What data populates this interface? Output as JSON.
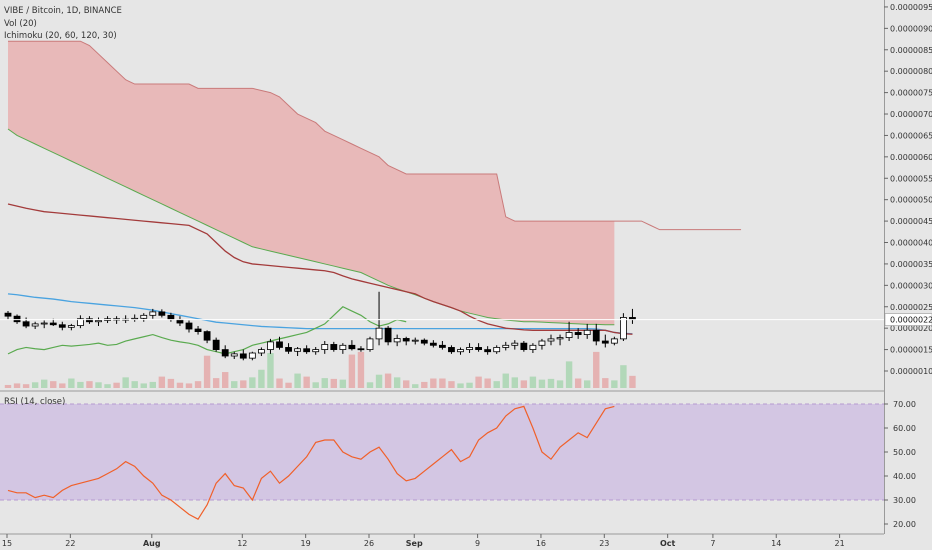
{
  "header": {
    "symbol_line": "VIBE / Bitcoin, 1D, BINANCE",
    "vol_label": "Vol (20)",
    "ichimoku_label": "Ichimoku (20, 60, 120, 30)"
  },
  "rsi": {
    "label": "RSI (14, close)",
    "upper_band": 70,
    "lower_band": 30,
    "y_ticks": [
      "70.00",
      "60.00",
      "50.00",
      "40.00",
      "30.00",
      "20.00"
    ],
    "values": [
      34,
      33,
      33,
      31,
      32,
      31,
      34,
      36,
      37,
      38,
      39,
      41,
      43,
      46,
      44,
      40,
      37,
      32,
      30,
      27,
      24,
      22,
      28,
      37,
      41,
      36,
      35,
      30,
      39,
      42,
      37,
      40,
      44,
      48,
      54,
      55,
      55,
      50,
      48,
      47,
      50,
      52,
      47,
      41,
      38,
      39,
      42,
      45,
      48,
      51,
      46,
      48,
      55,
      58,
      60,
      65,
      68,
      69,
      60,
      50,
      47,
      52,
      55,
      58,
      56,
      62,
      68,
      69
    ],
    "colors": {
      "line": "#f0602a",
      "band_fill": "#d3c6e3",
      "band_border": "#b59bd0"
    }
  },
  "price_axis": {
    "ticks": [
      "0.00000950",
      "0.00000900",
      "0.00000850",
      "0.00000800",
      "0.00000750",
      "0.00000700",
      "0.00000650",
      "0.00000600",
      "0.00000550",
      "0.00000500",
      "0.00000450",
      "0.00000400",
      "0.00000350",
      "0.00000300",
      "0.00000250",
      "0.00000200",
      "0.00000150",
      "0.00000100"
    ],
    "last_price_label": "0.00000220",
    "last_price": 220
  },
  "time_axis": {
    "ticks": [
      "15",
      "22",
      "Aug",
      "12",
      "19",
      "26",
      "Sep",
      "9",
      "16",
      "23",
      "Oct",
      "7",
      "14",
      "21"
    ],
    "bold_ticks": [
      "Aug",
      "Sep",
      "Oct"
    ]
  },
  "chart_data": {
    "type": "candlestick",
    "price_scale_note": "values in satoshi (1e-8 BTC)",
    "ohlc": [
      [
        235,
        240,
        220,
        228
      ],
      [
        228,
        232,
        210,
        215
      ],
      [
        215,
        225,
        200,
        205
      ],
      [
        205,
        215,
        198,
        210
      ],
      [
        210,
        218,
        200,
        212
      ],
      [
        212,
        222,
        205,
        208
      ],
      [
        208,
        215,
        195,
        202
      ],
      [
        202,
        210,
        195,
        206
      ],
      [
        206,
        230,
        200,
        222
      ],
      [
        222,
        228,
        210,
        215
      ],
      [
        215,
        225,
        205,
        218
      ],
      [
        218,
        228,
        212,
        222
      ],
      [
        222,
        228,
        210,
        219
      ],
      [
        219,
        230,
        212,
        221
      ],
      [
        221,
        232,
        215,
        223
      ],
      [
        223,
        235,
        215,
        230
      ],
      [
        230,
        245,
        222,
        238
      ],
      [
        238,
        244,
        225,
        230
      ],
      [
        230,
        236,
        215,
        220
      ],
      [
        220,
        228,
        205,
        212
      ],
      [
        212,
        218,
        190,
        198
      ],
      [
        198,
        205,
        185,
        192
      ],
      [
        192,
        195,
        165,
        172
      ],
      [
        172,
        178,
        145,
        150
      ],
      [
        150,
        160,
        130,
        135
      ],
      [
        135,
        145,
        128,
        140
      ],
      [
        140,
        150,
        125,
        130
      ],
      [
        130,
        145,
        125,
        142
      ],
      [
        142,
        155,
        135,
        150
      ],
      [
        150,
        175,
        140,
        168
      ],
      [
        168,
        180,
        150,
        155
      ],
      [
        155,
        165,
        140,
        146
      ],
      [
        146,
        156,
        135,
        152
      ],
      [
        152,
        160,
        140,
        145
      ],
      [
        145,
        156,
        138,
        150
      ],
      [
        150,
        170,
        140,
        162
      ],
      [
        162,
        168,
        145,
        150
      ],
      [
        150,
        165,
        140,
        160
      ],
      [
        160,
        172,
        148,
        152
      ],
      [
        152,
        158,
        145,
        150
      ],
      [
        150,
        180,
        145,
        175
      ],
      [
        175,
        285,
        160,
        200
      ],
      [
        200,
        205,
        160,
        168
      ],
      [
        168,
        185,
        158,
        176
      ],
      [
        176,
        180,
        160,
        170
      ],
      [
        170,
        178,
        162,
        172
      ],
      [
        172,
        176,
        160,
        165
      ],
      [
        165,
        172,
        155,
        160
      ],
      [
        160,
        170,
        150,
        155
      ],
      [
        155,
        160,
        140,
        145
      ],
      [
        145,
        155,
        138,
        150
      ],
      [
        150,
        165,
        142,
        155
      ],
      [
        155,
        165,
        145,
        150
      ],
      [
        150,
        158,
        138,
        145
      ],
      [
        145,
        160,
        140,
        155
      ],
      [
        155,
        168,
        148,
        160
      ],
      [
        160,
        172,
        150,
        165
      ],
      [
        165,
        170,
        145,
        150
      ],
      [
        150,
        165,
        142,
        160
      ],
      [
        160,
        175,
        150,
        170
      ],
      [
        170,
        185,
        160,
        175
      ],
      [
        175,
        185,
        160,
        178
      ],
      [
        178,
        215,
        170,
        190
      ],
      [
        190,
        200,
        175,
        185
      ],
      [
        185,
        210,
        175,
        195
      ],
      [
        195,
        210,
        160,
        170
      ],
      [
        170,
        185,
        155,
        165
      ],
      [
        165,
        180,
        160,
        175
      ],
      [
        175,
        235,
        170,
        225
      ],
      [
        225,
        245,
        210,
        220
      ]
    ],
    "volume": [
      8,
      12,
      10,
      15,
      22,
      18,
      12,
      25,
      16,
      18,
      15,
      10,
      14,
      28,
      18,
      12,
      16,
      30,
      24,
      14,
      12,
      18,
      85,
      26,
      42,
      18,
      20,
      28,
      48,
      92,
      25,
      14,
      38,
      30,
      15,
      26,
      24,
      22,
      88,
      95,
      15,
      35,
      38,
      28,
      20,
      10,
      16,
      25,
      25,
      18,
      12,
      14,
      30,
      25,
      18,
      38,
      28,
      20,
      30,
      22,
      24,
      20,
      70,
      25,
      20,
      95,
      26,
      20,
      60,
      32
    ],
    "ichimoku": {
      "conversion_line": [
        280,
        278,
        275,
        272,
        270,
        268,
        265,
        262,
        260,
        258,
        256,
        254,
        252,
        250,
        248,
        245,
        242,
        238,
        234,
        230,
        226,
        222,
        218,
        214,
        212,
        210,
        208,
        206,
        204,
        203,
        202,
        201,
        200,
        199,
        199,
        199,
        199,
        199,
        199,
        199,
        199,
        199,
        199,
        199,
        199,
        199,
        199,
        199,
        199,
        199,
        199,
        199,
        199,
        199,
        199,
        199,
        199,
        199,
        199,
        199,
        199,
        199,
        199,
        199,
        199,
        198,
        195,
        190,
        188,
        187
      ],
      "base_line": [
        490,
        485,
        480,
        476,
        472,
        470,
        468,
        466,
        464,
        462,
        460,
        458,
        456,
        454,
        452,
        450,
        448,
        446,
        444,
        442,
        440,
        430,
        420,
        400,
        380,
        365,
        355,
        350,
        348,
        346,
        344,
        342,
        340,
        338,
        336,
        334,
        330,
        322,
        315,
        310,
        305,
        300,
        295,
        290,
        285,
        280,
        270,
        262,
        255,
        248,
        240,
        228,
        218,
        210,
        205,
        200,
        198,
        196,
        195,
        195,
        195,
        195,
        195,
        195,
        195,
        195,
        195,
        190,
        187,
        186
      ],
      "leading_span_a": [
        665,
        650,
        640,
        630,
        620,
        610,
        600,
        590,
        580,
        570,
        560,
        550,
        540,
        530,
        520,
        510,
        500,
        490,
        480,
        470,
        460,
        450,
        440,
        430,
        420,
        410,
        400,
        390,
        385,
        380,
        375,
        370,
        365,
        360,
        355,
        350,
        345,
        340,
        335,
        330,
        320,
        310,
        300,
        292,
        285,
        278,
        270,
        262,
        255,
        248,
        240,
        235,
        230,
        225,
        222,
        219,
        217,
        215,
        215,
        214,
        213,
        212,
        211,
        210,
        209,
        209,
        208,
        208
      ],
      "leading_span_b": [
        870,
        870,
        870,
        870,
        870,
        870,
        870,
        870,
        870,
        860,
        840,
        820,
        800,
        780,
        770,
        770,
        770,
        770,
        770,
        770,
        770,
        760,
        760,
        760,
        760,
        760,
        760,
        760,
        755,
        750,
        740,
        720,
        700,
        690,
        680,
        660,
        650,
        640,
        630,
        620,
        610,
        600,
        580,
        570,
        560,
        560,
        560,
        560,
        560,
        560,
        560,
        560,
        560,
        560,
        560,
        460,
        450,
        450,
        450,
        450,
        450,
        450,
        450,
        450,
        450,
        450,
        450,
        450,
        450,
        450,
        450,
        440,
        430,
        430,
        430,
        430,
        430,
        430,
        430,
        430,
        430,
        430
      ],
      "lagging_span": [
        140,
        150,
        155,
        152,
        150,
        155,
        160,
        158,
        160,
        162,
        165,
        160,
        162,
        170,
        175,
        180,
        185,
        178,
        172,
        168,
        165,
        160,
        150,
        145,
        140,
        145,
        150,
        160,
        165,
        170,
        175,
        180,
        185,
        190,
        200,
        210,
        230,
        250,
        240,
        230,
        215,
        205,
        210,
        220,
        215
      ]
    },
    "colors": {
      "up_candle": "#ffffff",
      "down_candle": "#000000",
      "wick": "#000000",
      "volume": "#a8d5b0",
      "volume_down": "#e4a8a8",
      "cloud_bear": "#e8b4b4",
      "cloud_bull": "#b6dfb6",
      "conversion": "#4aa3e0",
      "base": "#a33b3b",
      "span_a": "#5aaa4f",
      "span_b": "#c97a7a",
      "lagging": "#5aaa4f",
      "last_price_line": "#ffffff"
    }
  }
}
